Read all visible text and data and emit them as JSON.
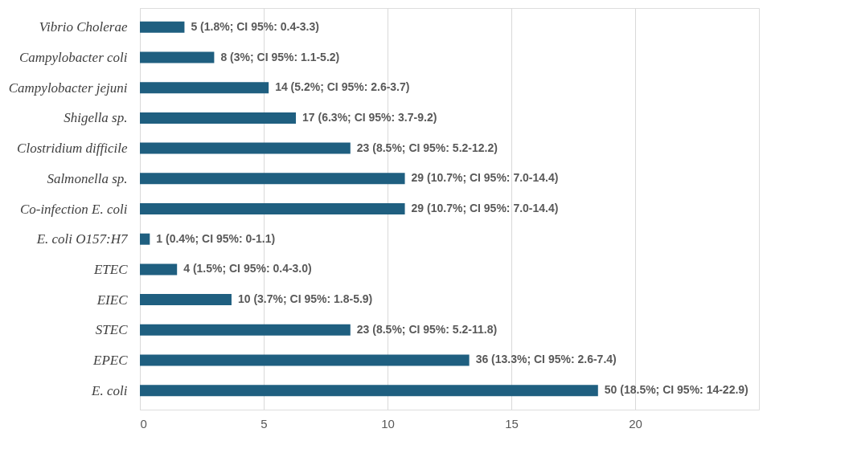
{
  "chart_data": {
    "type": "bar",
    "orientation": "horizontal",
    "categories": [
      "Vibrio Cholerae",
      "Campylobacter coli",
      "Campylobacter jejuni",
      "Shigella sp.",
      "Clostridium difficile",
      "Salmonella sp.",
      "Co-infection E. coli",
      "E. coli O157:H7",
      "ETEC",
      "EIEC",
      "STEC",
      "EPEC",
      "E. coli"
    ],
    "values": [
      1.8,
      3,
      5.2,
      6.3,
      8.5,
      10.7,
      10.7,
      0.4,
      1.5,
      3.7,
      8.5,
      13.3,
      18.5
    ],
    "value_labels": [
      "5 (1.8%; CI 95%: 0.4-3.3)",
      "8 (3%; CI 95%: 1.1-5.2)",
      "14 (5.2%; CI 95%: 2.6-3.7)",
      "17 (6.3%; CI 95%: 3.7-9.2)",
      "23 (8.5%; CI 95%: 5.2-12.2)",
      "29 (10.7%; CI 95%: 7.0-14.4)",
      "29 (10.7%; CI 95%: 7.0-14.4)",
      "1 (0.4%; CI 95%: 0-1.1)",
      "4 (1.5%; CI 95%: 0.4-3.0)",
      "10 (3.7%; CI 95%: 1.8-5.9)",
      "23 (8.5%; CI 95%: 5.2-11.8)",
      "36 (13.3%; CI 95%: 2.6-7.4)",
      "50 (18.5%; CI 95%: 14-22.9)"
    ],
    "color": "#1f5f80",
    "xlim": [
      0,
      25
    ],
    "xticks": [
      0,
      5,
      10,
      15,
      20
    ],
    "grid": "x"
  }
}
